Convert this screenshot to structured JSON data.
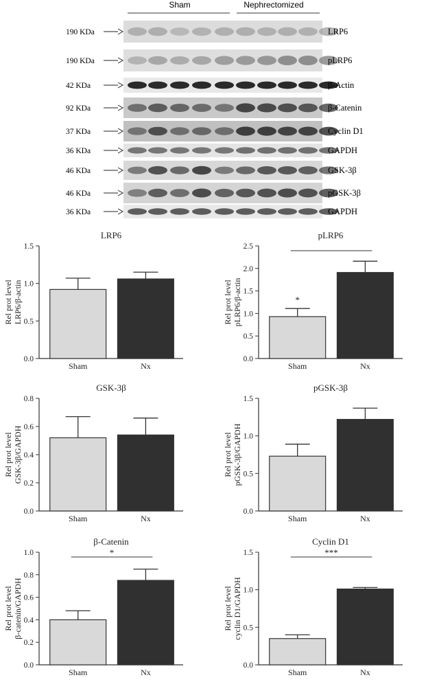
{
  "blot": {
    "group_labels": [
      "Sham",
      "Nephrectomized"
    ],
    "rows": [
      {
        "kda": "190 KDa",
        "protein": "LRP6",
        "bg": "#dcdcdc",
        "band": "#9a9a9a",
        "sham": [
          0.55,
          0.6,
          0.4,
          0.5,
          0.55
        ],
        "nx": [
          0.6,
          0.55,
          0.6,
          0.55,
          0.6
        ]
      },
      {
        "kda": "190 KDa",
        "protein": "pLRP6",
        "bg": "#dedede",
        "band": "#8a8a8a",
        "sham": [
          0.35,
          0.55,
          0.45,
          0.55,
          0.7
        ],
        "nx": [
          0.75,
          0.8,
          0.95,
          0.95,
          0.8
        ]
      },
      {
        "kda": "42 KDa",
        "protein": "β-Actin",
        "bg": "#e8e8e8",
        "band": "#222222",
        "sham": [
          0.95,
          0.95,
          0.95,
          0.95,
          0.95
        ],
        "nx": [
          0.95,
          0.95,
          0.95,
          0.95,
          0.95
        ]
      },
      {
        "kda": "92 KDa",
        "protein": "β-Catenin",
        "bg": "#c9c9c9",
        "band": "#3a3a3a",
        "sham": [
          0.5,
          0.7,
          0.6,
          0.55,
          0.45
        ],
        "nx": [
          0.9,
          0.85,
          0.8,
          0.75,
          0.7
        ]
      },
      {
        "kda": "37 KDa",
        "protein": "Cyclin D1",
        "bg": "#c0c0c0",
        "band": "#333333",
        "sham": [
          0.4,
          0.75,
          0.45,
          0.5,
          0.45
        ],
        "nx": [
          0.9,
          0.9,
          0.85,
          0.85,
          0.8
        ]
      },
      {
        "kda": "36 KDa",
        "protein": "GAPDH",
        "bg": "#e4e4e4",
        "band": "#555555",
        "sham": [
          0.7,
          0.7,
          0.7,
          0.7,
          0.7
        ],
        "nx": [
          0.75,
          0.75,
          0.75,
          0.75,
          0.75
        ]
      },
      {
        "kda": "46 KDa",
        "protein": "GSK-3β",
        "bg": "#d8d8d8",
        "band": "#3a3a3a",
        "sham": [
          0.45,
          0.8,
          0.6,
          0.9,
          0.45
        ],
        "nx": [
          0.6,
          0.75,
          0.75,
          0.7,
          0.6
        ]
      },
      {
        "kda": "46 KDa",
        "protein": "pGSK-3β",
        "bg": "#d4d4d4",
        "band": "#3a3a3a",
        "sham": [
          0.4,
          0.7,
          0.55,
          0.85,
          0.65
        ],
        "nx": [
          0.75,
          0.8,
          0.85,
          0.8,
          0.75
        ]
      },
      {
        "kda": "36 KDa",
        "protein": "GAPDH",
        "bg": "#e8e8e8",
        "band": "#444444",
        "sham": [
          0.8,
          0.8,
          0.8,
          0.8,
          0.8
        ],
        "nx": [
          0.8,
          0.8,
          0.8,
          0.8,
          0.8
        ]
      }
    ]
  },
  "colors": {
    "sham": "#d9d9d9",
    "nx": "#303030"
  },
  "chart_data": [
    {
      "type": "bar",
      "title": "LRP6",
      "ylabel": [
        "Rel prot level",
        "LRP6/β-actin"
      ],
      "categories": [
        "Sham",
        "Nx"
      ],
      "values": [
        0.92,
        1.06
      ],
      "errors": [
        0.15,
        0.09
      ],
      "ylim": [
        0,
        1.5
      ],
      "yticks": [
        "0.0",
        "0.5",
        "1.0",
        "1.5"
      ],
      "significance": "",
      "sig_line": false,
      "star_on_bar": ""
    },
    {
      "type": "bar",
      "title": "pLRP6",
      "ylabel": [
        "Rel prot level",
        "pLRP6/β-actin"
      ],
      "categories": [
        "Sham",
        "Nx"
      ],
      "values": [
        0.93,
        1.91
      ],
      "errors": [
        0.18,
        0.25
      ],
      "ylim": [
        0,
        2.5
      ],
      "yticks": [
        "0.0",
        "0.5",
        "1.0",
        "1.5",
        "2.0",
        "2.5"
      ],
      "significance": "",
      "sig_line": true,
      "star_on_bar": "*"
    },
    {
      "type": "bar",
      "title": "GSK-3β",
      "ylabel": [
        "Rel prot level",
        "GSK-3β/GAPDH"
      ],
      "categories": [
        "Sham",
        "Nx"
      ],
      "values": [
        0.52,
        0.54
      ],
      "errors": [
        0.15,
        0.12
      ],
      "ylim": [
        0,
        0.8
      ],
      "yticks": [
        "0.0",
        "0.2",
        "0.4",
        "0.6",
        "0.8"
      ],
      "significance": "",
      "sig_line": false,
      "star_on_bar": ""
    },
    {
      "type": "bar",
      "title": "pGSK-3β",
      "ylabel": [
        "Rel prot level",
        "pGSK-3β/GAPDH"
      ],
      "categories": [
        "Sham",
        "Nx"
      ],
      "values": [
        0.73,
        1.22
      ],
      "errors": [
        0.16,
        0.15
      ],
      "ylim": [
        0,
        1.5
      ],
      "yticks": [
        "0.0",
        "0.5",
        "1.0",
        "1.5"
      ],
      "significance": "",
      "sig_line": false,
      "star_on_bar": ""
    },
    {
      "type": "bar",
      "title": "β-Catenin",
      "ylabel": [
        "Rel prot level",
        "β-catenin/GAPDH"
      ],
      "categories": [
        "Sham",
        "Nx"
      ],
      "values": [
        0.4,
        0.75
      ],
      "errors": [
        0.08,
        0.1
      ],
      "ylim": [
        0,
        1.0
      ],
      "yticks": [
        "0.0",
        "0.2",
        "0.4",
        "0.6",
        "0.8",
        "1.0"
      ],
      "significance": "*",
      "sig_line": true,
      "star_on_bar": ""
    },
    {
      "type": "bar",
      "title": "Cyclin D1",
      "ylabel": [
        "Rel prot level",
        "cyclin D1/GAPDH"
      ],
      "categories": [
        "Sham",
        "Nx"
      ],
      "values": [
        0.35,
        1.01
      ],
      "errors": [
        0.05,
        0.02
      ],
      "ylim": [
        0,
        1.5
      ],
      "yticks": [
        "0.0",
        "0.5",
        "1.0",
        "1.5"
      ],
      "significance": "***",
      "sig_line": true,
      "star_on_bar": ""
    }
  ]
}
